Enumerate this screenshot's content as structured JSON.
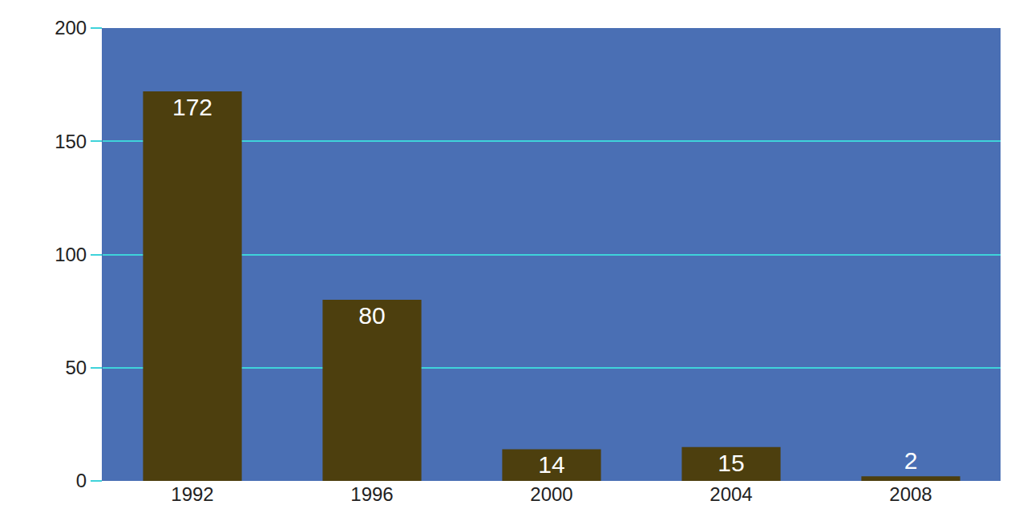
{
  "chart_data": {
    "type": "bar",
    "categories": [
      "1992",
      "1996",
      "2000",
      "2004",
      "2008"
    ],
    "values": [
      172,
      80,
      14,
      15,
      2
    ],
    "color": "#4d3f0e",
    "ylim": [
      0,
      200
    ],
    "yticks": [
      0,
      50,
      100,
      150,
      200
    ],
    "grid": true,
    "data_labels": true
  }
}
